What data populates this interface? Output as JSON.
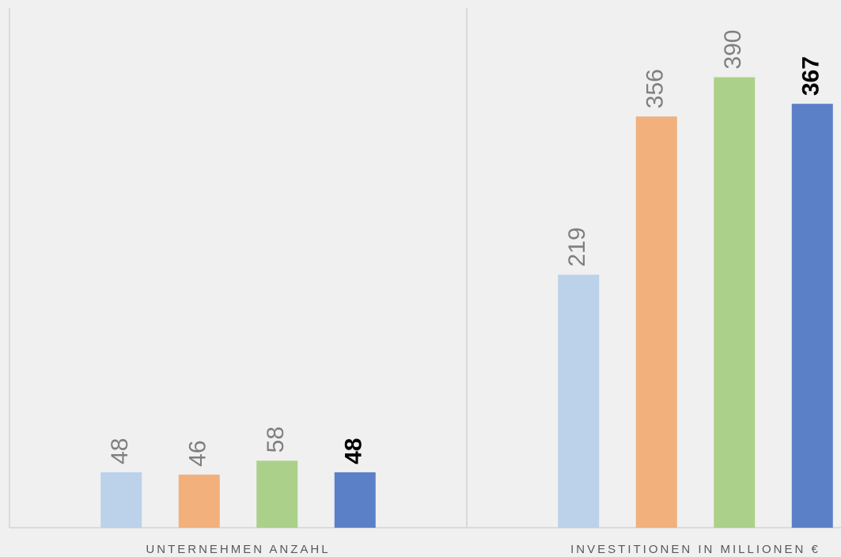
{
  "chart_data": {
    "type": "bar",
    "categories": [
      "UNTERNEHMEN ANZAHL",
      "INVESTITIONEN IN MILLIONEN €"
    ],
    "series": [
      {
        "color": "#bcd1ea",
        "label_color": "#7f7f7f",
        "values": [
          48,
          219
        ]
      },
      {
        "color": "#f1b07c",
        "label_color": "#7f7f7f",
        "values": [
          46,
          356
        ]
      },
      {
        "color": "#abd08a",
        "label_color": "#7f7f7f",
        "values": [
          58,
          390
        ]
      },
      {
        "color": "#5b80c8",
        "label_color": "#000000",
        "values": [
          48,
          367
        ]
      }
    ],
    "ylim": [
      0,
      450
    ]
  }
}
